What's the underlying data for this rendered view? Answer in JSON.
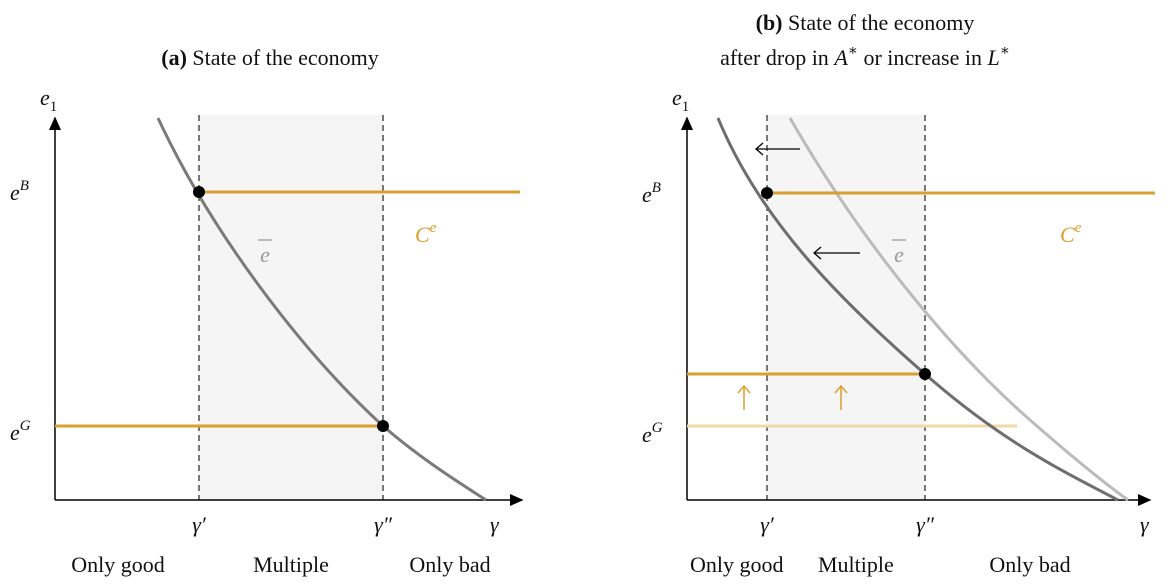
{
  "panels": [
    {
      "title_tag": "(a)",
      "title": "State of the economy",
      "y_axis": {
        "base": "e",
        "sub": "1"
      },
      "x_axis": "γ",
      "levels": [
        {
          "base": "e",
          "sup": "B"
        },
        {
          "base": "e",
          "sup": "G"
        }
      ],
      "thresholds": [
        "γ′",
        "γ″"
      ],
      "curve_label": "e",
      "constraint_label": {
        "base": "C",
        "sup": "e"
      },
      "regions": [
        "Only good",
        "Multiple",
        "Only bad"
      ]
    },
    {
      "title_tag": "(b)",
      "title": "State of the economy",
      "subtitle": [
        "after drop in ",
        {
          "base": "A",
          "sup": "∗"
        },
        " or increase in ",
        {
          "base": "L",
          "sup": "∗"
        }
      ],
      "y_axis": {
        "base": "e",
        "sub": "1"
      },
      "x_axis": "γ",
      "levels": [
        {
          "base": "e",
          "sup": "B"
        },
        {
          "base": "e",
          "sup": "G"
        }
      ],
      "thresholds": [
        "γ′",
        "γ″"
      ],
      "curve_label": "e",
      "constraint_label": {
        "base": "C",
        "sup": "e"
      },
      "regions": [
        "Only good",
        "Multiple",
        "Only bad"
      ]
    }
  ]
}
